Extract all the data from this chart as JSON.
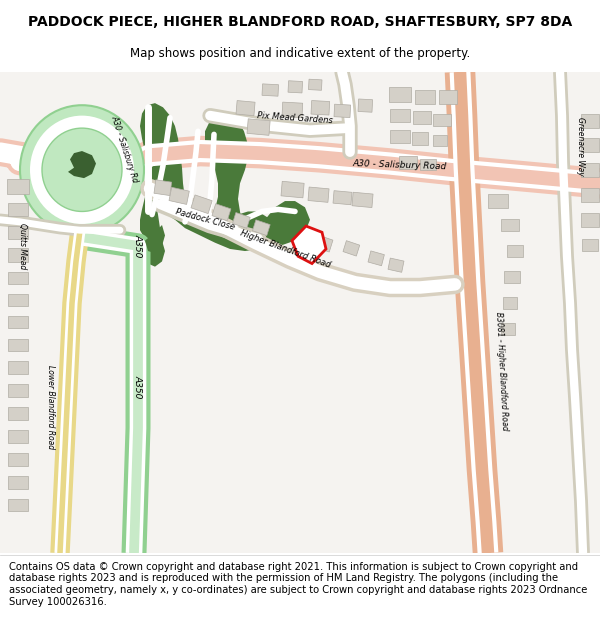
{
  "title_line1": "PADDOCK PIECE, HIGHER BLANDFORD ROAD, SHAFTESBURY, SP7 8DA",
  "title_line2": "Map shows position and indicative extent of the property.",
  "footer_text": "Contains OS data © Crown copyright and database right 2021. This information is subject to Crown copyright and database rights 2023 and is reproduced with the permission of HM Land Registry. The polygons (including the associated geometry, namely x, y co-ordinates) are subject to Crown copyright and database rights 2023 Ordnance Survey 100026316.",
  "map_bg": "#f5f3f0",
  "road_pink": "#f2c4b4",
  "road_orange": "#e8b090",
  "road_green_edge": "#90d090",
  "road_green_fill": "#c8eac8",
  "green_dark": "#4a7a3a",
  "green_mid": "#5a8a4a",
  "roundabout_green": "#c0e8c0",
  "pond_green": "#3a6030",
  "building_gray": "#d4d0c8",
  "building_outline": "#b0aca4",
  "red_box_color": "#dd1111",
  "yellow_road": "#e8d888",
  "white_road": "#ffffff",
  "title_fontsize": 10,
  "subtitle_fontsize": 8.5,
  "footer_fontsize": 7.2,
  "label_fontsize": 6.5
}
